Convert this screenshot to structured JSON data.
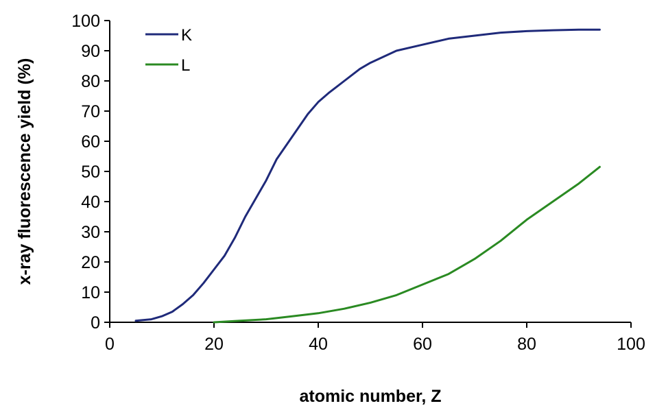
{
  "chart_data": {
    "type": "line",
    "xlabel": "atomic number, Z",
    "ylabel": "x-ray fluorescence yield (%)",
    "xlim": [
      0,
      100
    ],
    "ylim": [
      0,
      100
    ],
    "xticks": [
      0,
      20,
      40,
      60,
      80,
      100
    ],
    "yticks": [
      0,
      10,
      20,
      30,
      40,
      50,
      60,
      70,
      80,
      90,
      100
    ],
    "grid": false,
    "legend_position": "top-left",
    "series": [
      {
        "name": "K",
        "color": "#1f2a7a",
        "x": [
          5,
          8,
          10,
          12,
          14,
          16,
          18,
          20,
          22,
          24,
          26,
          28,
          30,
          32,
          34,
          36,
          38,
          40,
          42,
          45,
          48,
          50,
          55,
          60,
          65,
          70,
          75,
          80,
          85,
          90,
          94
        ],
        "y": [
          0.5,
          1,
          2,
          3.5,
          6,
          9,
          13,
          17.5,
          22,
          28,
          35,
          41,
          47,
          54,
          59,
          64,
          69,
          73,
          76,
          80,
          84,
          86,
          90,
          92,
          94,
          95,
          96,
          96.5,
          96.8,
          97,
          97
        ]
      },
      {
        "name": "L",
        "color": "#2a8a22",
        "x": [
          20,
          25,
          30,
          35,
          40,
          45,
          50,
          55,
          60,
          65,
          70,
          75,
          80,
          85,
          90,
          94
        ],
        "y": [
          0,
          0.5,
          1,
          2,
          3,
          4.5,
          6.5,
          9,
          12.5,
          16,
          21,
          27,
          34,
          40,
          46,
          51.5
        ]
      }
    ]
  }
}
